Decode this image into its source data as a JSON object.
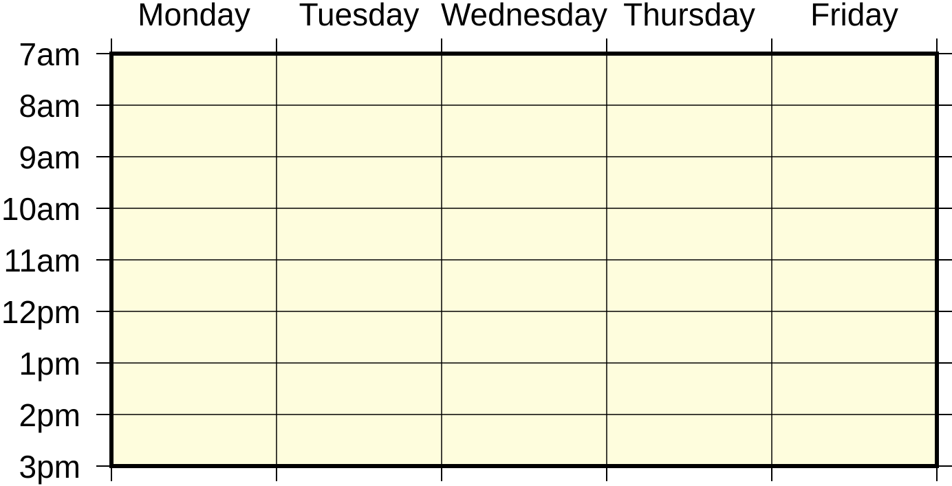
{
  "days": [
    "Monday",
    "Tuesday",
    "Wednesday",
    "Thursday",
    "Friday"
  ],
  "hours": [
    "7am",
    "8am",
    "9am",
    "10am",
    "11am",
    "12pm",
    "1pm",
    "2pm",
    "3pm"
  ],
  "colors": {
    "cell_fill": "#fefddd",
    "grid_line": "#000000",
    "frame": "#000000",
    "background": "#ffffff"
  }
}
